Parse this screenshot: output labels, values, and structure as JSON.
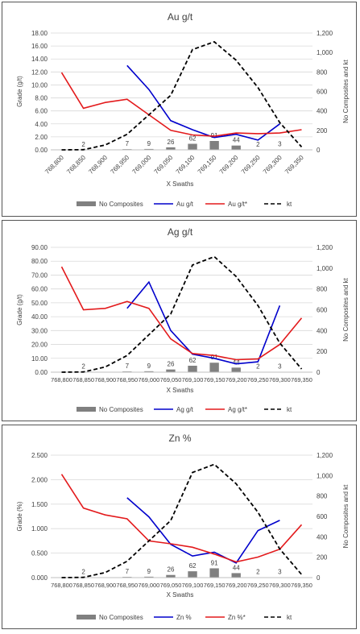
{
  "chart_data": [
    {
      "type": "bar+line",
      "title": "Au g/t",
      "xlabel": "X Swaths",
      "ylabel": "Grade (g/t)",
      "y2label": "No Composites and kt",
      "categories": [
        "768,800",
        "768,850",
        "768,900",
        "768,950",
        "769,000",
        "769,050",
        "769,100",
        "769,150",
        "769,200",
        "769,250",
        "769,300",
        "769,350"
      ],
      "ylim": [
        0,
        18
      ],
      "yticks": [
        "0.00",
        "2.00",
        "4.00",
        "6.00",
        "8.00",
        "10.00",
        "12.00",
        "14.00",
        "16.00",
        "18.00"
      ],
      "y2lim": [
        0,
        1200
      ],
      "y2ticks": [
        "0",
        "200",
        "400",
        "600",
        "800",
        "1,000",
        "1,200"
      ],
      "composites": {
        "name": "No Composites",
        "values": [
          0,
          2,
          0,
          7,
          9,
          26,
          62,
          91,
          44,
          2,
          3,
          0
        ],
        "labels": [
          "",
          "2",
          "",
          "7",
          "9",
          "26",
          "62",
          "91",
          "44",
          "2",
          "3",
          ""
        ]
      },
      "series": [
        {
          "name": "Au g/t",
          "color": "#0000cc",
          "style": "solid",
          "axis": "left",
          "values": [
            null,
            null,
            null,
            13.0,
            9.3,
            4.5,
            3.1,
            1.9,
            2.4,
            1.5,
            4.0,
            null
          ]
        },
        {
          "name": "Au g/t*",
          "color": "#e31a1c",
          "style": "solid",
          "axis": "left",
          "values": [
            11.9,
            6.4,
            7.3,
            7.8,
            5.4,
            3.0,
            2.3,
            2.1,
            2.6,
            2.5,
            2.6,
            3.1
          ]
        },
        {
          "name": "kt",
          "color": "#000000",
          "style": "dashed",
          "axis": "right",
          "values": [
            0,
            2,
            50,
            160,
            360,
            560,
            1030,
            1110,
            920,
            640,
            280,
            30
          ]
        }
      ],
      "legend": "bottom"
    },
    {
      "type": "bar+line",
      "title": "Ag g/t",
      "xlabel": "X Swaths",
      "ylabel": "Grade (g/t)",
      "y2label": "No Composites and kt",
      "categories": [
        "768,800",
        "768,850",
        "768,900",
        "768,950",
        "769,000",
        "769,050",
        "769,100",
        "769,150",
        "769,200",
        "769,250",
        "769,300",
        "769,350"
      ],
      "ylim": [
        0,
        90
      ],
      "yticks": [
        "0.00",
        "10.00",
        "20.00",
        "30.00",
        "40.00",
        "50.00",
        "60.00",
        "70.00",
        "80.00",
        "90.00"
      ],
      "y2lim": [
        0,
        1200
      ],
      "y2ticks": [
        "0",
        "200",
        "400",
        "600",
        "800",
        "1,000",
        "1,200"
      ],
      "composites": {
        "name": "No Composites",
        "values": [
          0,
          2,
          0,
          7,
          9,
          26,
          62,
          91,
          44,
          2,
          3,
          0
        ],
        "labels": [
          "",
          "2",
          "",
          "7",
          "9",
          "26",
          "62",
          "91",
          "44",
          "2",
          "3",
          ""
        ]
      },
      "series": [
        {
          "name": "Ag g/t",
          "color": "#0000cc",
          "style": "solid",
          "axis": "left",
          "values": [
            null,
            null,
            null,
            46.0,
            65.0,
            30.0,
            13.0,
            10.0,
            6.0,
            7.5,
            48.0,
            null
          ]
        },
        {
          "name": "Ag g/t*",
          "color": "#e31a1c",
          "style": "solid",
          "axis": "left",
          "values": [
            76.0,
            45.0,
            46.0,
            51.0,
            46.0,
            24.0,
            13.5,
            12.0,
            9.0,
            9.5,
            20.0,
            39.0
          ]
        },
        {
          "name": "kt",
          "color": "#000000",
          "style": "dashed",
          "axis": "right",
          "values": [
            0,
            2,
            50,
            160,
            360,
            560,
            1030,
            1110,
            920,
            640,
            280,
            30
          ]
        }
      ],
      "legend": "bottom"
    },
    {
      "type": "bar+line",
      "title": "Zn %",
      "xlabel": "X Swaths",
      "ylabel": "Grade (%)",
      "y2label": "No Composites and kt",
      "categories": [
        "768,800",
        "768,850",
        "768,900",
        "768,950",
        "769,000",
        "769,050",
        "769,100",
        "769,150",
        "769,200",
        "769,250",
        "769,300",
        "769,350"
      ],
      "ylim": [
        0,
        2.5
      ],
      "yticks": [
        "0.000",
        "0.500",
        "1.000",
        "1.500",
        "2.000",
        "2.500"
      ],
      "y2lim": [
        0,
        1200
      ],
      "y2ticks": [
        "0",
        "200",
        "400",
        "600",
        "800",
        "1,000",
        "1,200"
      ],
      "composites": {
        "name": "No Composites",
        "values": [
          0,
          2,
          0,
          7,
          9,
          26,
          62,
          91,
          44,
          2,
          3,
          0
        ],
        "labels": [
          "",
          "2",
          "",
          "7",
          "9",
          "26",
          "62",
          "91",
          "44",
          "2",
          "3",
          ""
        ]
      },
      "series": [
        {
          "name": "Zn %",
          "color": "#0000cc",
          "style": "solid",
          "axis": "left",
          "values": [
            null,
            null,
            null,
            1.63,
            1.24,
            0.68,
            0.44,
            0.52,
            0.3,
            0.96,
            1.17,
            null
          ]
        },
        {
          "name": "Zn %*",
          "color": "#e31a1c",
          "style": "solid",
          "axis": "left",
          "values": [
            2.11,
            1.42,
            1.28,
            1.2,
            0.75,
            0.69,
            0.62,
            0.48,
            0.32,
            0.42,
            0.58,
            1.08
          ]
        },
        {
          "name": "kt",
          "color": "#000000",
          "style": "dashed",
          "axis": "right",
          "values": [
            0,
            2,
            50,
            160,
            360,
            560,
            1030,
            1110,
            920,
            640,
            280,
            30
          ]
        }
      ],
      "legend": "bottom"
    }
  ]
}
